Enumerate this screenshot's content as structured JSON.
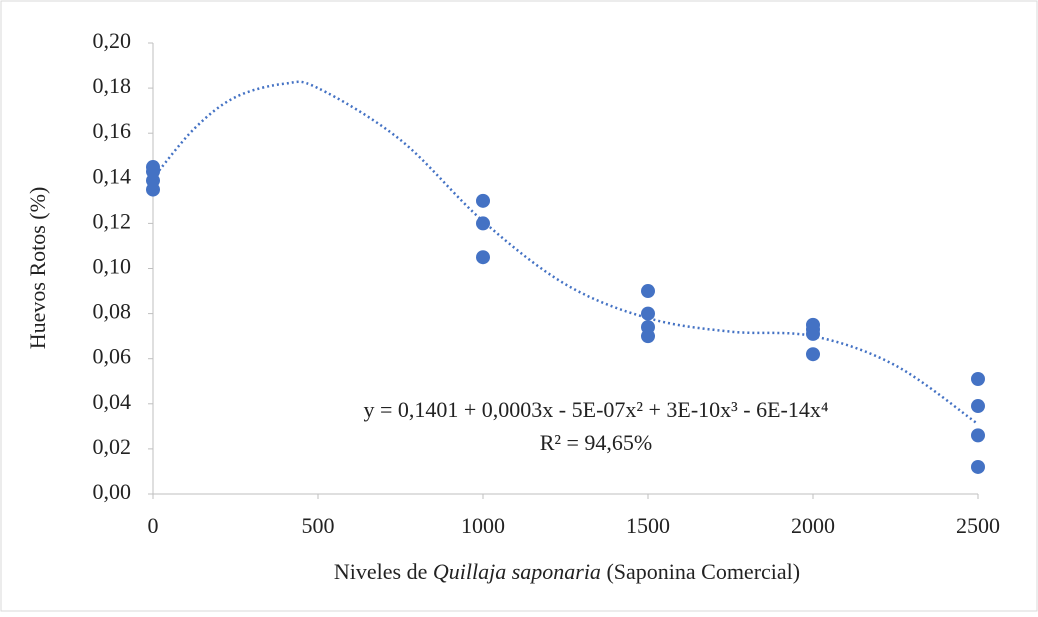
{
  "chart_data": {
    "type": "scatter",
    "ylabel": "Huevos Rotos (%)",
    "xlabel_parts": [
      "Niveles de ",
      "Quillaja saponaria",
      " (Saponina Comercial)"
    ],
    "equation": "y = 0,1401  + 0,0003x  - 5E-07x² + 3E-10x³  - 6E-14x⁴",
    "r_squared": "R² = 94,65%",
    "color": "#4472c4",
    "series": [
      {
        "x": [
          0,
          0,
          0,
          0,
          1000,
          1000,
          1000,
          1500,
          1500,
          1500,
          1500,
          2000,
          2000,
          2000,
          2000,
          2500,
          2500,
          2500,
          2500
        ],
        "values": [
          0.145,
          0.143,
          0.139,
          0.135,
          0.13,
          0.12,
          0.105,
          0.09,
          0.08,
          0.074,
          0.07,
          0.075,
          0.073,
          0.071,
          0.062,
          0.051,
          0.039,
          0.026,
          0.012
        ]
      }
    ],
    "trendline": {
      "x": [
        0,
        125,
        250,
        400,
        500,
        750,
        1000,
        1250,
        1500,
        1750,
        2000,
        2250,
        2500
      ],
      "values": [
        0.14,
        0.162,
        0.176,
        0.182,
        0.18,
        0.157,
        0.121,
        0.093,
        0.078,
        0.072,
        0.07,
        0.057,
        0.031
      ]
    },
    "xlim": [
      0,
      2500
    ],
    "xticks": [
      0,
      500,
      1000,
      1500,
      2000,
      2500
    ],
    "ylim": [
      0,
      0.2
    ],
    "yticks": [
      {
        "value": 0,
        "label": "0,00"
      },
      {
        "value": 0.02,
        "label": "0,02"
      },
      {
        "value": 0.04,
        "label": "0,04"
      },
      {
        "value": 0.06,
        "label": "0,06"
      },
      {
        "value": 0.08,
        "label": "0,08"
      },
      {
        "value": 0.1,
        "label": "0,10"
      },
      {
        "value": 0.12,
        "label": "0,12"
      },
      {
        "value": 0.14,
        "label": "0,14"
      },
      {
        "value": 0.16,
        "label": "0,16"
      },
      {
        "value": 0.18,
        "label": "0,18"
      },
      {
        "value": 0.2,
        "label": "0,20"
      }
    ],
    "grid": false
  }
}
